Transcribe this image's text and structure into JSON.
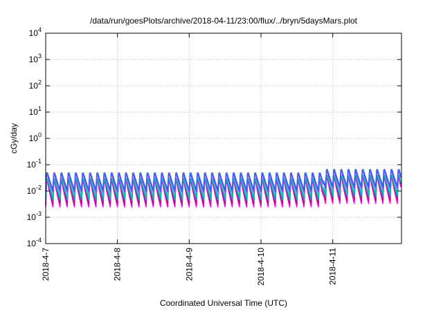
{
  "chart_data": {
    "type": "line",
    "title": "/data/run/goesPlots/archive/2018-04-11/23:00/flux/../bryn/5daysMars.plot",
    "xlabel": "Coordinated Universal Time (UTC)",
    "ylabel": "cGy/day",
    "yscale": "log",
    "ylim": [
      0.0001,
      10000
    ],
    "xlim": [
      "2018-04-07 00:00",
      "2018-04-11 23:00"
    ],
    "grid": true,
    "legend": "none",
    "y_ticks": [
      {
        "base": "10",
        "exp": "4"
      },
      {
        "base": "10",
        "exp": "3"
      },
      {
        "base": "10",
        "exp": "2"
      },
      {
        "base": "10",
        "exp": "1"
      },
      {
        "base": "10",
        "exp": "0"
      },
      {
        "base": "10",
        "exp": "-1"
      },
      {
        "base": "10",
        "exp": "-2"
      },
      {
        "base": "10",
        "exp": "-3"
      },
      {
        "base": "10",
        "exp": "-4"
      }
    ],
    "x_ticks": [
      "2018-4-7",
      "2018-4-8",
      "2018-4-9",
      "2018-4-10",
      "2018-4-11"
    ],
    "cycle_hours": 2.4,
    "series": [
      {
        "color": "#ff00ff",
        "min": 0.0025,
        "max": 0.033
      },
      {
        "color": "#c8006e",
        "min": 0.0032,
        "max": 0.042
      },
      {
        "color": "#00a0c8",
        "min": 0.0045,
        "max": 0.04
      },
      {
        "color": "#00c8a0",
        "min": 0.006,
        "max": 0.038
      },
      {
        "color": "#9040ff",
        "min": 0.009,
        "max": 0.052
      },
      {
        "color": "#3060ff",
        "min": 0.011,
        "max": 0.063
      }
    ],
    "late_scale": [
      {
        "from": "2018-04-10 21:00",
        "to": "2018-04-11 23:00",
        "factor": 1.35
      }
    ]
  }
}
